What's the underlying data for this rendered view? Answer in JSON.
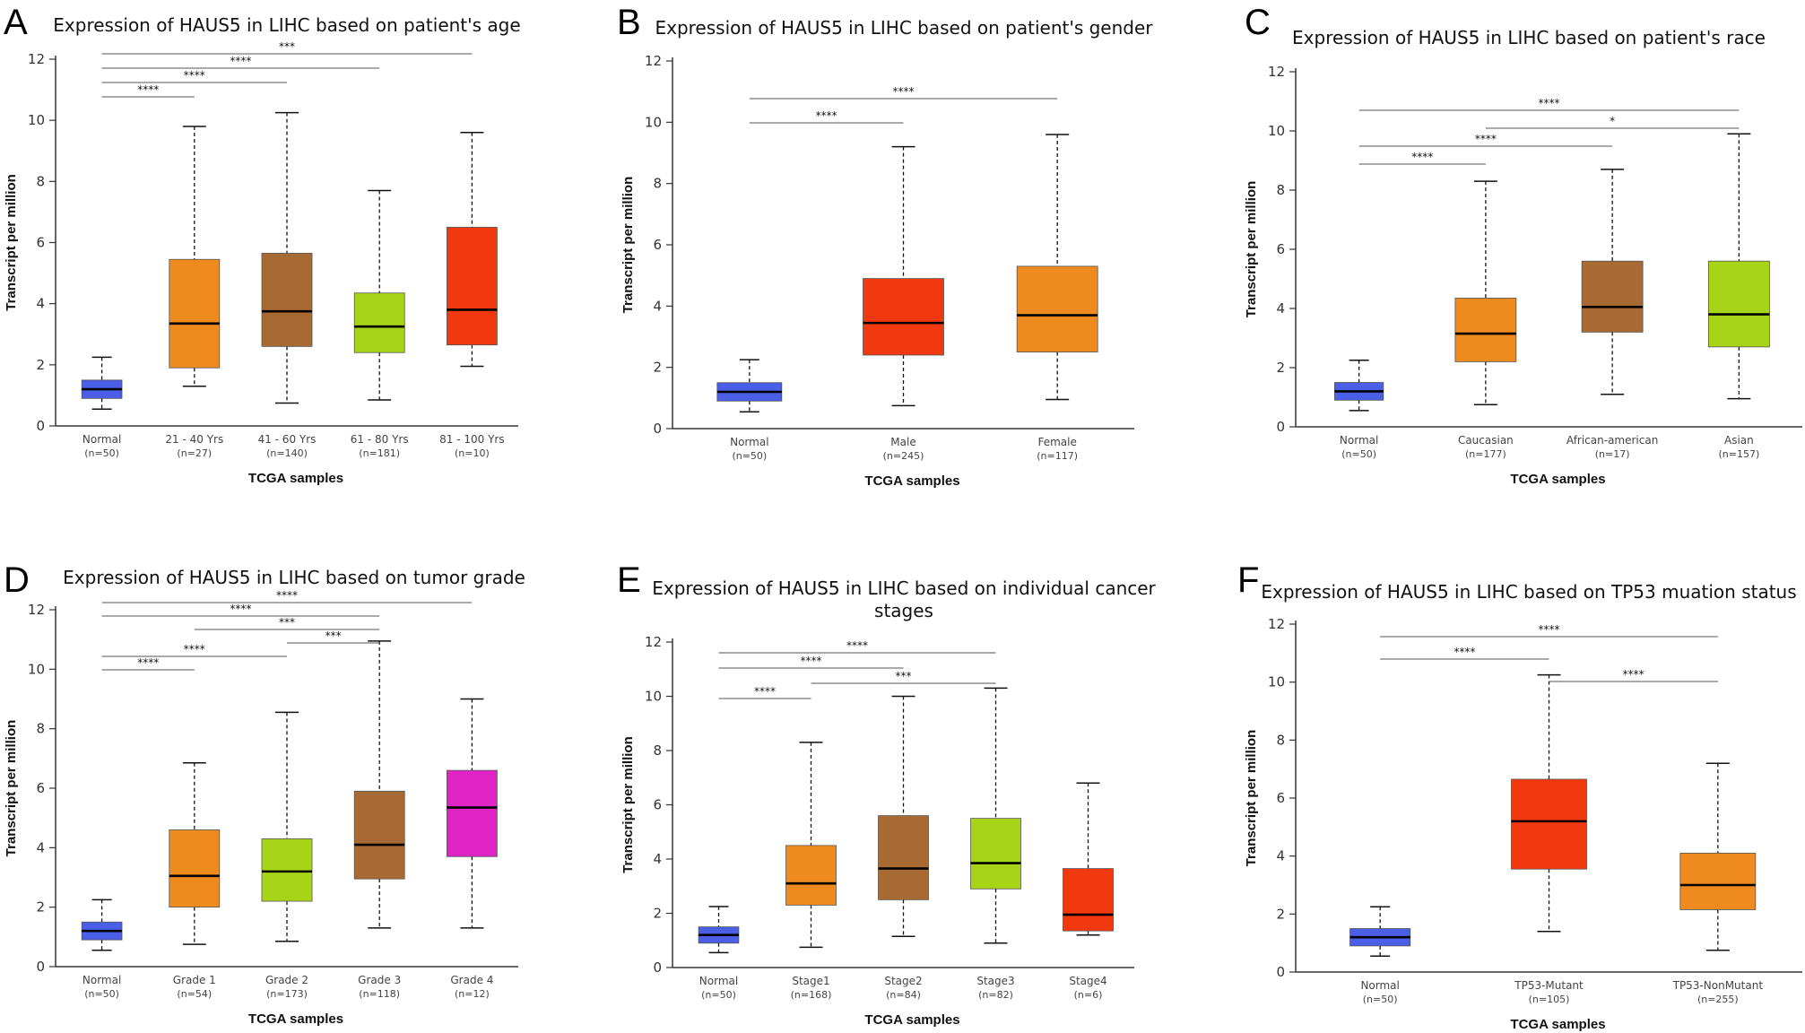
{
  "chart_data": [
    {
      "panel": "A",
      "type": "box",
      "title": "Expression of HAUS5 in LIHC based on patient's age",
      "xlabel": "TCGA samples",
      "ylabel": "Transcript per million",
      "ylim": [
        0,
        12
      ],
      "yticks": [
        0,
        2,
        4,
        6,
        8,
        10,
        12
      ],
      "categories": [
        {
          "name": "Normal",
          "n": "(n=50)",
          "color": "#4a5ee6",
          "min": 0.55,
          "q1": 0.9,
          "median": 1.2,
          "q3": 1.5,
          "max": 2.25
        },
        {
          "name": "21 - 40 Yrs",
          "n": "(n=27)",
          "color": "#ef8a1e",
          "min": 1.3,
          "q1": 1.9,
          "median": 3.35,
          "q3": 5.45,
          "max": 9.8
        },
        {
          "name": "41 - 60 Yrs",
          "n": "(n=140)",
          "color": "#a86a33",
          "min": 0.75,
          "q1": 2.6,
          "median": 3.75,
          "q3": 5.65,
          "max": 10.25
        },
        {
          "name": "61 - 80 Yrs",
          "n": "(n=181)",
          "color": "#a8d418",
          "min": 0.85,
          "q1": 2.4,
          "median": 3.25,
          "q3": 4.35,
          "max": 7.7
        },
        {
          "name": "81 - 100 Yrs",
          "n": "(n=10)",
          "color": "#f2380f",
          "min": 1.95,
          "q1": 2.65,
          "median": 3.8,
          "q3": 6.5,
          "max": 9.6
        }
      ],
      "significance": [
        {
          "from": 0,
          "to": 4,
          "label": "***"
        },
        {
          "from": 0,
          "to": 3,
          "label": "****"
        },
        {
          "from": 0,
          "to": 2,
          "label": "****"
        },
        {
          "from": 0,
          "to": 1,
          "label": "****"
        }
      ]
    },
    {
      "panel": "B",
      "type": "box",
      "title": "Expression of HAUS5 in LIHC based on patient's gender",
      "xlabel": "TCGA samples",
      "ylabel": "Transcript per million",
      "ylim": [
        0,
        12
      ],
      "yticks": [
        0,
        2,
        4,
        6,
        8,
        10,
        12
      ],
      "categories": [
        {
          "name": "Normal",
          "n": "(n=50)",
          "color": "#4a5ee6",
          "min": 0.55,
          "q1": 0.9,
          "median": 1.2,
          "q3": 1.5,
          "max": 2.25
        },
        {
          "name": "Male",
          "n": "(n=245)",
          "color": "#f2380f",
          "min": 0.75,
          "q1": 2.4,
          "median": 3.45,
          "q3": 4.9,
          "max": 9.2
        },
        {
          "name": "Female",
          "n": "(n=117)",
          "color": "#ef8a1e",
          "min": 0.95,
          "q1": 2.5,
          "median": 3.7,
          "q3": 5.3,
          "max": 9.6
        }
      ],
      "significance": [
        {
          "from": 0,
          "to": 2,
          "label": "****"
        },
        {
          "from": 0,
          "to": 1,
          "label": "****"
        }
      ]
    },
    {
      "panel": "C",
      "type": "box",
      "title": "Expression of HAUS5 in LIHC based on patient's race",
      "xlabel": "TCGA samples",
      "ylabel": "Transcript per million",
      "ylim": [
        0,
        12
      ],
      "yticks": [
        0,
        2,
        4,
        6,
        8,
        10,
        12
      ],
      "categories": [
        {
          "name": "Normal",
          "n": "(n=50)",
          "color": "#4a5ee6",
          "min": 0.55,
          "q1": 0.9,
          "median": 1.2,
          "q3": 1.5,
          "max": 2.25
        },
        {
          "name": "Caucasian",
          "n": "(n=177)",
          "color": "#ef8a1e",
          "min": 0.75,
          "q1": 2.2,
          "median": 3.15,
          "q3": 4.35,
          "max": 8.3
        },
        {
          "name": "African-american",
          "n": "(n=17)",
          "color": "#a86a33",
          "min": 1.1,
          "q1": 3.2,
          "median": 4.05,
          "q3": 5.6,
          "max": 8.7
        },
        {
          "name": "Asian",
          "n": "(n=157)",
          "color": "#a8d418",
          "min": 0.95,
          "q1": 2.7,
          "median": 3.8,
          "q3": 5.6,
          "max": 9.9
        }
      ],
      "significance": [
        {
          "from": 0,
          "to": 3,
          "label": "****"
        },
        {
          "from": 1,
          "to": 3,
          "label": "*"
        },
        {
          "from": 0,
          "to": 2,
          "label": "****"
        },
        {
          "from": 0,
          "to": 1,
          "label": "****"
        }
      ]
    },
    {
      "panel": "D",
      "type": "box",
      "title": "Expression of HAUS5 in LIHC based on tumor grade",
      "xlabel": "TCGA samples",
      "ylabel": "Transcript per million",
      "ylim": [
        0,
        12
      ],
      "yticks": [
        0,
        2,
        4,
        6,
        8,
        10,
        12
      ],
      "categories": [
        {
          "name": "Normal",
          "n": "(n=50)",
          "color": "#4a5ee6",
          "min": 0.55,
          "q1": 0.9,
          "median": 1.2,
          "q3": 1.5,
          "max": 2.25
        },
        {
          "name": "Grade 1",
          "n": "(n=54)",
          "color": "#ef8a1e",
          "min": 0.75,
          "q1": 2.0,
          "median": 3.05,
          "q3": 4.6,
          "max": 6.85
        },
        {
          "name": "Grade 2",
          "n": "(n=173)",
          "color": "#a8d418",
          "min": 0.85,
          "q1": 2.2,
          "median": 3.2,
          "q3": 4.3,
          "max": 8.55
        },
        {
          "name": "Grade 3",
          "n": "(n=118)",
          "color": "#a86a33",
          "min": 1.3,
          "q1": 2.95,
          "median": 4.1,
          "q3": 5.9,
          "max": 10.95
        },
        {
          "name": "Grade 4",
          "n": "(n=12)",
          "color": "#e023c4",
          "min": 1.3,
          "q1": 3.7,
          "median": 5.35,
          "q3": 6.6,
          "max": 9.0
        }
      ],
      "significance": [
        {
          "from": 0,
          "to": 4,
          "label": "****"
        },
        {
          "from": 0,
          "to": 3,
          "label": "****"
        },
        {
          "from": 1,
          "to": 3,
          "label": "***"
        },
        {
          "from": 2,
          "to": 3,
          "label": "***"
        },
        {
          "from": 0,
          "to": 2,
          "label": "****"
        },
        {
          "from": 0,
          "to": 1,
          "label": "****"
        }
      ]
    },
    {
      "panel": "E",
      "type": "box",
      "title": "Expression of HAUS5 in LIHC based on individual cancer",
      "title_line2": "stages",
      "xlabel": "TCGA samples",
      "ylabel": "Transcript per million",
      "ylim": [
        0,
        12
      ],
      "yticks": [
        0,
        2,
        4,
        6,
        8,
        10,
        12
      ],
      "categories": [
        {
          "name": "Normal",
          "n": "(n=50)",
          "color": "#4a5ee6",
          "min": 0.55,
          "q1": 0.9,
          "median": 1.2,
          "q3": 1.5,
          "max": 2.25
        },
        {
          "name": "Stage1",
          "n": "(n=168)",
          "color": "#ef8a1e",
          "min": 0.75,
          "q1": 2.3,
          "median": 3.1,
          "q3": 4.5,
          "max": 8.3
        },
        {
          "name": "Stage2",
          "n": "(n=84)",
          "color": "#a86a33",
          "min": 1.15,
          "q1": 2.5,
          "median": 3.65,
          "q3": 5.6,
          "max": 10.0
        },
        {
          "name": "Stage3",
          "n": "(n=82)",
          "color": "#a8d418",
          "min": 0.9,
          "q1": 2.9,
          "median": 3.85,
          "q3": 5.5,
          "max": 10.3
        },
        {
          "name": "Stage4",
          "n": "(n=6)",
          "color": "#f2380f",
          "min": 1.2,
          "q1": 1.35,
          "median": 1.95,
          "q3": 3.65,
          "max": 6.8
        }
      ],
      "significance": [
        {
          "from": 0,
          "to": 3,
          "label": "****"
        },
        {
          "from": 0,
          "to": 2,
          "label": "****"
        },
        {
          "from": 1,
          "to": 3,
          "label": "***"
        },
        {
          "from": 0,
          "to": 1,
          "label": "****"
        }
      ]
    },
    {
      "panel": "F",
      "type": "box",
      "title": "Expression of HAUS5 in LIHC based on TP53 muation status",
      "xlabel": "TCGA samples",
      "ylabel": "Transcript per million",
      "ylim": [
        0,
        12
      ],
      "yticks": [
        0,
        2,
        4,
        6,
        8,
        10,
        12
      ],
      "categories": [
        {
          "name": "Normal",
          "n": "(n=50)",
          "color": "#4a5ee6",
          "min": 0.55,
          "q1": 0.9,
          "median": 1.2,
          "q3": 1.5,
          "max": 2.25
        },
        {
          "name": "TP53-Mutant",
          "n": "(n=105)",
          "color": "#f2380f",
          "min": 1.4,
          "q1": 3.55,
          "median": 5.2,
          "q3": 6.65,
          "max": 10.25
        },
        {
          "name": "TP53-NonMutant",
          "n": "(n=255)",
          "color": "#ef8a1e",
          "min": 0.75,
          "q1": 2.15,
          "median": 3.0,
          "q3": 4.1,
          "max": 7.2
        }
      ],
      "significance": [
        {
          "from": 0,
          "to": 2,
          "label": "****"
        },
        {
          "from": 0,
          "to": 1,
          "label": "****"
        },
        {
          "from": 1,
          "to": 2,
          "label": "****"
        }
      ]
    }
  ]
}
